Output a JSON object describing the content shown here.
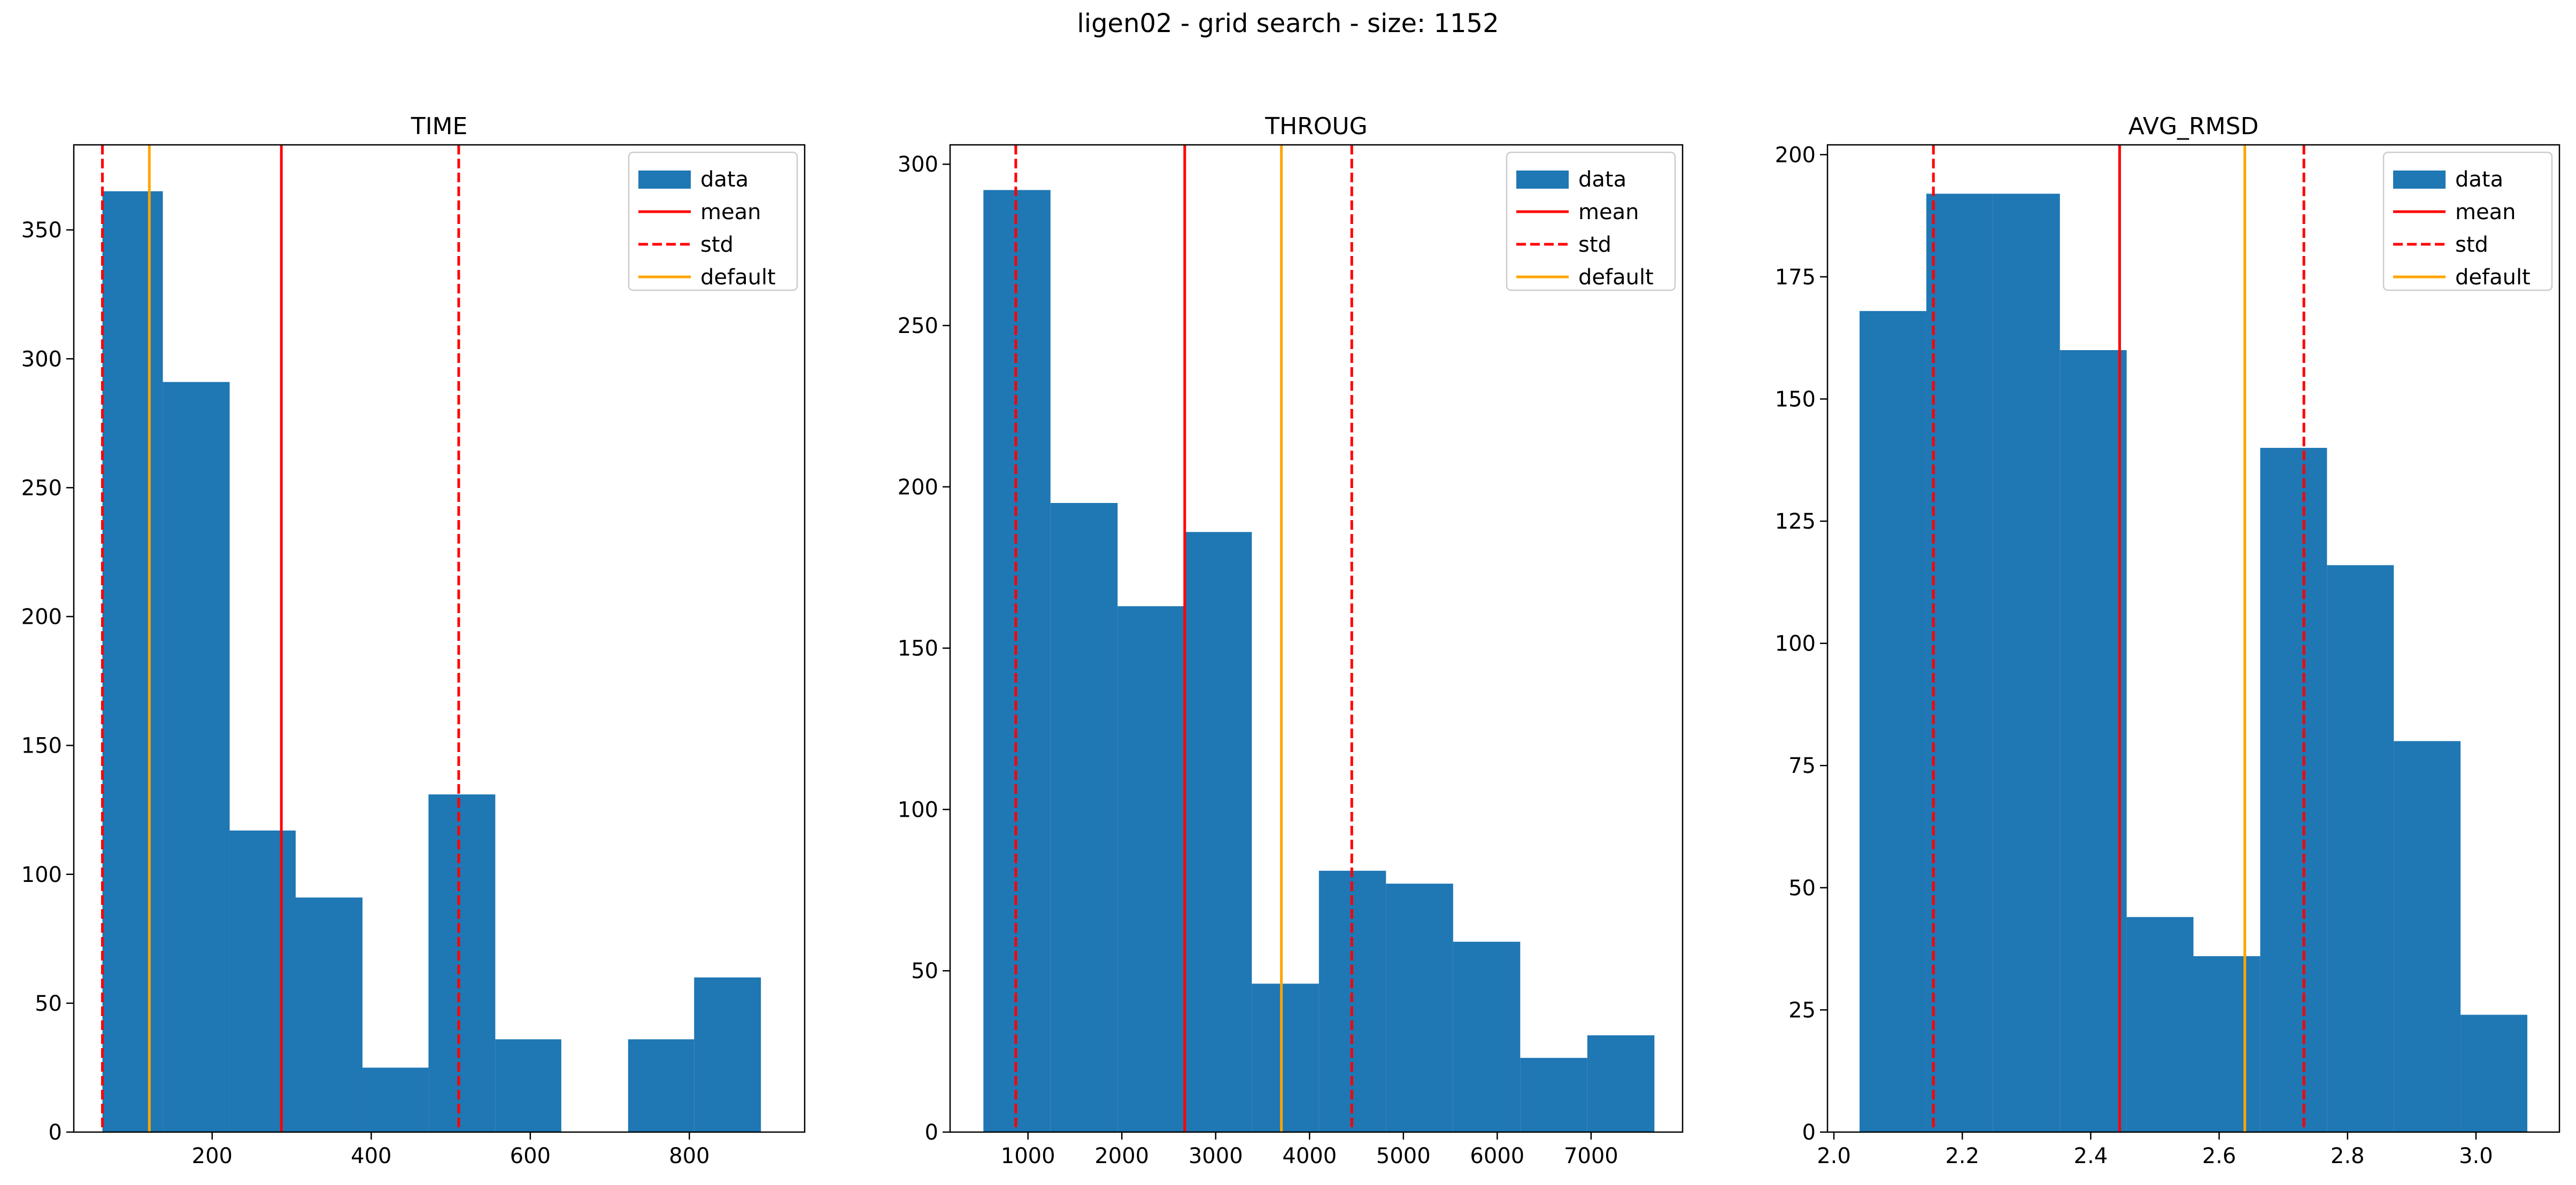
{
  "figure": {
    "suptitle": "ligen02 - grid search - size: 1152"
  },
  "legend_labels": [
    "data",
    "mean",
    "std",
    "default"
  ],
  "colors": {
    "data": "#1f77b4",
    "mean": "#ff0000",
    "std": "#ff0000",
    "default": "#ffa500",
    "axes": "#000000"
  },
  "chart_data": [
    {
      "type": "bar",
      "title": "TIME",
      "xlabel": "",
      "ylabel": "",
      "xlim": [
        26,
        945
      ],
      "ylim": [
        0,
        383
      ],
      "xticks": [
        200,
        400,
        600,
        800
      ],
      "yticks": [
        0,
        50,
        100,
        150,
        200,
        250,
        300,
        350
      ],
      "bins": [
        [
          62,
          138,
          365
        ],
        [
          138,
          222,
          291
        ],
        [
          222,
          305,
          117
        ],
        [
          305,
          389,
          91
        ],
        [
          389,
          472,
          25
        ],
        [
          472,
          556,
          131
        ],
        [
          556,
          639,
          36
        ],
        [
          639,
          723,
          0
        ],
        [
          723,
          806,
          36
        ],
        [
          806,
          890,
          60
        ]
      ],
      "mean": 287,
      "std_lines": [
        62,
        510
      ],
      "default": 121,
      "legend": "top-right",
      "grid": false
    },
    {
      "type": "bar",
      "title": "THROUG",
      "xlabel": "",
      "ylabel": "",
      "xlim": [
        170,
        7975
      ],
      "ylim": [
        0,
        306
      ],
      "xticks": [
        1000,
        2000,
        3000,
        4000,
        5000,
        6000,
        7000
      ],
      "yticks": [
        0,
        50,
        100,
        150,
        200,
        250,
        300
      ],
      "bins": [
        [
          525,
          1240,
          292
        ],
        [
          1240,
          1955,
          195
        ],
        [
          1955,
          2670,
          163
        ],
        [
          2670,
          3385,
          186
        ],
        [
          3385,
          4100,
          46
        ],
        [
          4100,
          4815,
          81
        ],
        [
          4815,
          5530,
          77
        ],
        [
          5530,
          6245,
          59
        ],
        [
          6245,
          6960,
          23
        ],
        [
          6960,
          7675,
          30
        ]
      ],
      "mean": 2670,
      "std_lines": [
        870,
        4450
      ],
      "default": 3700,
      "legend": "top-right",
      "grid": false
    },
    {
      "type": "bar",
      "title": "AVG_RMSD",
      "xlabel": "",
      "ylabel": "",
      "xlim": [
        1.99,
        3.13
      ],
      "ylim": [
        0,
        202
      ],
      "xticks": [
        "2.0",
        "2.2",
        "2.4",
        "2.6",
        "2.8",
        "3.0"
      ],
      "yticks": [
        0,
        25,
        50,
        75,
        100,
        125,
        150,
        175,
        200
      ],
      "bins": [
        [
          2.04,
          2.144,
          168
        ],
        [
          2.144,
          2.248,
          192
        ],
        [
          2.248,
          2.352,
          192
        ],
        [
          2.352,
          2.456,
          160
        ],
        [
          2.456,
          2.56,
          44
        ],
        [
          2.56,
          2.664,
          36
        ],
        [
          2.664,
          2.768,
          140
        ],
        [
          2.768,
          2.872,
          116
        ],
        [
          2.872,
          2.976,
          80
        ],
        [
          2.976,
          3.08,
          24
        ]
      ],
      "mean": 2.445,
      "std_lines": [
        2.155,
        2.732
      ],
      "default": 2.64,
      "legend": "top-right",
      "grid": false
    }
  ]
}
